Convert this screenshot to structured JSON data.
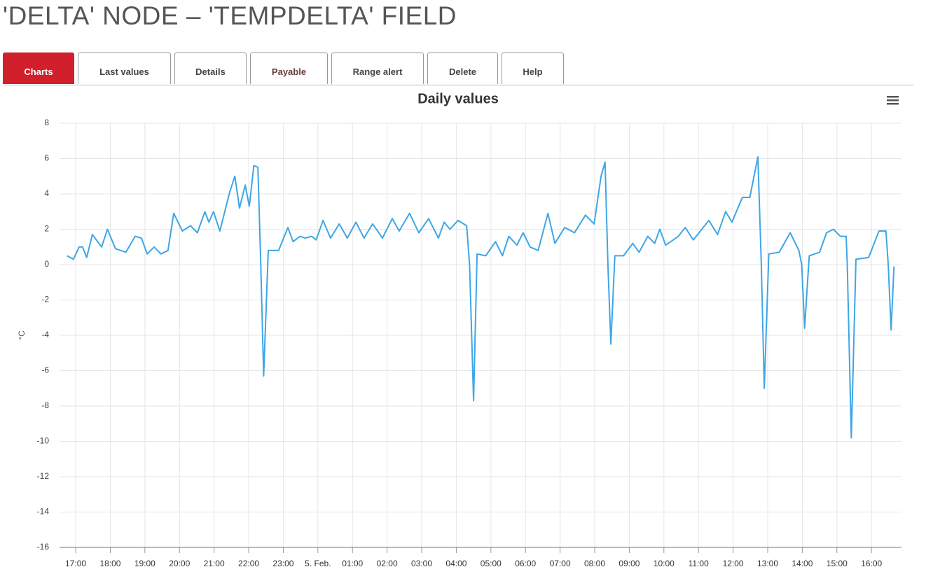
{
  "header": {
    "title": "'DELTA' NODE – 'TEMPDELTA' FIELD"
  },
  "tabs": {
    "items": [
      "Charts",
      "Last values",
      "Details",
      "Payable",
      "Range alert",
      "Delete",
      "Help"
    ],
    "active": 0
  },
  "chart_data": {
    "type": "line",
    "title": "Daily values",
    "y_label": "°C",
    "color": "#3ea6e6",
    "grid": true,
    "x": [
      "16:45",
      "16:56",
      "17:06",
      "17:12",
      "17:19",
      "17:29",
      "17:45",
      "17:55",
      "18:09",
      "18:27",
      "18:43",
      "18:54",
      "19:04",
      "19:16",
      "19:28",
      "19:40",
      "19:50",
      "20:05",
      "20:19",
      "20:31",
      "20:44",
      "20:51",
      "20:59",
      "21:10",
      "21:27",
      "21:36",
      "21:44",
      "21:54",
      "22:01",
      "22:09",
      "22:16",
      "22:21",
      "22:26",
      "22:34",
      "22:52",
      "23:08",
      "23:17",
      "23:29",
      "23:38",
      "23:49",
      "23:57",
      "00:09",
      "00:22",
      "00:37",
      "00:51",
      "01:06",
      "01:20",
      "01:35",
      "01:52",
      "02:09",
      "02:21",
      "02:39",
      "02:55",
      "03:12",
      "03:29",
      "03:39",
      "03:49",
      "04:03",
      "04:18",
      "04:23",
      "04:30",
      "04:36",
      "04:51",
      "05:08",
      "05:20",
      "05:31",
      "05:45",
      "05:56",
      "06:08",
      "06:22",
      "06:39",
      "06:51",
      "07:08",
      "07:25",
      "07:44",
      "07:59",
      "08:11",
      "08:18",
      "08:23",
      "08:28",
      "08:35",
      "08:50",
      "09:06",
      "09:17",
      "09:32",
      "09:44",
      "09:53",
      "10:03",
      "10:12",
      "10:25",
      "10:37",
      "10:51",
      "11:18",
      "11:33",
      "11:47",
      "11:58",
      "12:16",
      "12:29",
      "12:43",
      "12:49",
      "12:54",
      "13:02",
      "13:20",
      "13:39",
      "13:54",
      "13:59",
      "14:04",
      "14:12",
      "14:30",
      "14:42",
      "14:54",
      "15:06",
      "15:16",
      "15:18",
      "15:25",
      "15:33",
      "15:55",
      "16:13",
      "16:25",
      "16:29",
      "16:34",
      "16:39"
    ],
    "values": [
      0.5,
      0.3,
      1.0,
      1.0,
      0.4,
      1.7,
      1.0,
      2.0,
      0.9,
      0.7,
      1.6,
      1.5,
      0.6,
      1.0,
      0.6,
      0.8,
      2.9,
      1.9,
      2.2,
      1.8,
      3.0,
      2.4,
      3.0,
      1.9,
      4.1,
      5.0,
      3.2,
      4.5,
      3.3,
      5.6,
      5.5,
      0,
      -6.3,
      0.8,
      0.8,
      2.1,
      1.3,
      1.6,
      1.5,
      1.6,
      1.4,
      2.5,
      1.5,
      2.3,
      1.5,
      2.4,
      1.5,
      2.3,
      1.5,
      2.6,
      1.9,
      2.9,
      1.8,
      2.6,
      1.5,
      2.4,
      2.0,
      2.5,
      2.2,
      0,
      -7.7,
      0.6,
      0.5,
      1.3,
      0.5,
      1.6,
      1.1,
      1.8,
      1.0,
      0.8,
      2.9,
      1.2,
      2.1,
      1.8,
      2.8,
      2.3,
      5.0,
      5.8,
      0,
      -4.5,
      0.5,
      0.5,
      1.2,
      0.7,
      1.6,
      1.2,
      2.0,
      1.1,
      1.3,
      1.6,
      2.1,
      1.4,
      2.5,
      1.7,
      3.0,
      2.4,
      3.8,
      3.8,
      6.1,
      0,
      -7.0,
      0.6,
      0.7,
      1.8,
      0.8,
      0,
      -3.6,
      0.5,
      0.7,
      1.8,
      2.0,
      1.6,
      1.6,
      0,
      -9.8,
      0.3,
      0.4,
      1.9,
      1.9,
      0,
      -3.7,
      -0.1
    ],
    "xlim": [
      "16:32",
      "16:52"
    ],
    "xticks": [
      "17:00",
      "18:00",
      "19:00",
      "20:00",
      "21:00",
      "22:00",
      "23:00",
      {
        "value": "00:00",
        "label": "5. Feb."
      },
      "01:00",
      "02:00",
      "03:00",
      "04:00",
      "05:00",
      "06:00",
      "07:00",
      "08:00",
      "09:00",
      "10:00",
      "11:00",
      "12:00",
      "13:00",
      "14:00",
      "15:00",
      "16:00"
    ],
    "ylim": [
      -16,
      8
    ],
    "yticks": [
      -16,
      -14,
      -12,
      -10,
      -8,
      -6,
      -4,
      -2,
      0,
      2,
      4,
      6,
      8
    ]
  }
}
